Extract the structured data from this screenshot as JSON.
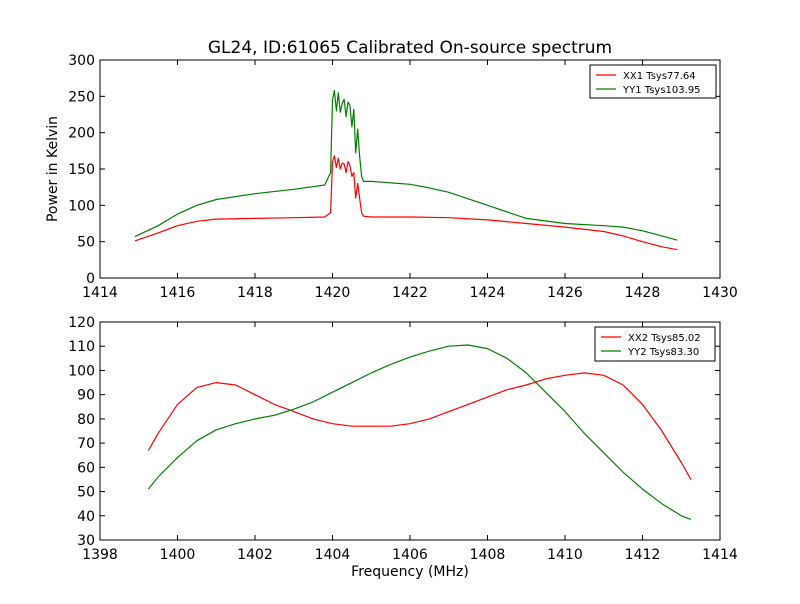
{
  "figure": {
    "title": "GL24, ID:61065 Calibrated On-source spectrum"
  },
  "chart_data": [
    {
      "type": "line",
      "title": "GL24, ID:61065 Calibrated On-source spectrum",
      "xlabel": "",
      "ylabel": "Power in Kelvin",
      "xlim": [
        1414,
        1430
      ],
      "ylim": [
        0,
        300
      ],
      "xticks": [
        1414,
        1416,
        1418,
        1420,
        1422,
        1424,
        1426,
        1428,
        1430
      ],
      "yticks": [
        0,
        50,
        100,
        150,
        200,
        250,
        300
      ],
      "grid": false,
      "legend_position": "top-right",
      "series": [
        {
          "name": "XX1 Tsys77.64",
          "color": "#ff0000",
          "x": [
            1414.9,
            1415.5,
            1416.0,
            1416.5,
            1417.0,
            1418.0,
            1419.0,
            1419.8,
            1419.95,
            1420.0,
            1420.05,
            1420.1,
            1420.15,
            1420.2,
            1420.25,
            1420.3,
            1420.35,
            1420.4,
            1420.45,
            1420.5,
            1420.55,
            1420.6,
            1420.65,
            1420.7,
            1420.75,
            1420.8,
            1421.0,
            1422.0,
            1423.0,
            1424.0,
            1425.0,
            1426.0,
            1427.0,
            1427.5,
            1428.0,
            1428.5,
            1428.9
          ],
          "values": [
            51,
            62,
            72,
            78,
            81,
            82,
            83,
            84,
            90,
            160,
            168,
            152,
            165,
            150,
            158,
            157,
            145,
            160,
            155,
            140,
            145,
            110,
            130,
            110,
            90,
            85,
            84,
            84,
            83,
            80,
            75,
            70,
            64,
            58,
            50,
            43,
            39
          ]
        },
        {
          "name": "YY1 Tsys103.95",
          "color": "#008000",
          "x": [
            1414.9,
            1415.5,
            1416.0,
            1416.5,
            1417.0,
            1418.0,
            1419.0,
            1419.8,
            1419.95,
            1420.0,
            1420.05,
            1420.1,
            1420.15,
            1420.2,
            1420.25,
            1420.3,
            1420.35,
            1420.4,
            1420.45,
            1420.5,
            1420.55,
            1420.6,
            1420.65,
            1420.7,
            1420.75,
            1420.8,
            1421.0,
            1422.0,
            1422.5,
            1423.0,
            1424.0,
            1425.0,
            1426.0,
            1427.0,
            1427.5,
            1428.0,
            1428.5,
            1428.9
          ],
          "values": [
            57,
            72,
            88,
            100,
            108,
            116,
            122,
            128,
            145,
            245,
            258,
            230,
            255,
            228,
            240,
            246,
            222,
            242,
            238,
            208,
            232,
            172,
            205,
            168,
            140,
            133,
            133,
            129,
            124,
            118,
            100,
            82,
            75,
            72,
            70,
            65,
            58,
            52
          ]
        }
      ]
    },
    {
      "type": "line",
      "title": "",
      "xlabel": "Frequency (MHz)",
      "ylabel": "",
      "xlim": [
        1398,
        1414
      ],
      "ylim": [
        30,
        120
      ],
      "xticks": [
        1398,
        1400,
        1402,
        1404,
        1406,
        1408,
        1410,
        1412,
        1414
      ],
      "yticks": [
        30,
        40,
        50,
        60,
        70,
        80,
        90,
        100,
        110,
        120
      ],
      "grid": false,
      "legend_position": "top-right",
      "series": [
        {
          "name": "XX2 Tsys85.02",
          "color": "#ff0000",
          "x": [
            1399.25,
            1399.5,
            1400.0,
            1400.5,
            1401.0,
            1401.5,
            1402.0,
            1402.5,
            1403.0,
            1403.5,
            1404.0,
            1404.5,
            1405.0,
            1405.5,
            1406.0,
            1406.5,
            1407.0,
            1407.5,
            1408.0,
            1408.5,
            1409.0,
            1409.5,
            1410.0,
            1410.5,
            1411.0,
            1411.5,
            1412.0,
            1412.5,
            1413.0,
            1413.25
          ],
          "values": [
            67,
            74,
            86,
            93,
            95,
            94,
            90,
            86,
            83,
            80,
            78,
            77,
            77,
            77,
            78,
            80,
            83,
            86,
            89,
            92,
            94,
            96.5,
            98,
            99,
            98,
            94,
            86,
            75,
            62,
            55
          ]
        },
        {
          "name": "YY2 Tsys83.30",
          "color": "#008000",
          "x": [
            1399.25,
            1399.5,
            1400.0,
            1400.5,
            1401.0,
            1401.5,
            1402.0,
            1402.5,
            1403.0,
            1403.5,
            1404.0,
            1404.5,
            1405.0,
            1405.5,
            1406.0,
            1406.5,
            1407.0,
            1407.5,
            1408.0,
            1408.5,
            1409.0,
            1409.5,
            1410.0,
            1410.5,
            1411.0,
            1411.5,
            1412.0,
            1412.5,
            1413.0,
            1413.25
          ],
          "values": [
            51,
            56,
            64,
            71,
            75.5,
            78,
            80,
            81.5,
            84,
            87,
            91,
            95,
            99,
            102.5,
            105.5,
            108,
            110,
            110.5,
            109,
            105,
            99,
            91,
            83,
            74,
            66,
            58,
            51,
            45,
            40,
            38.5
          ]
        }
      ]
    }
  ]
}
